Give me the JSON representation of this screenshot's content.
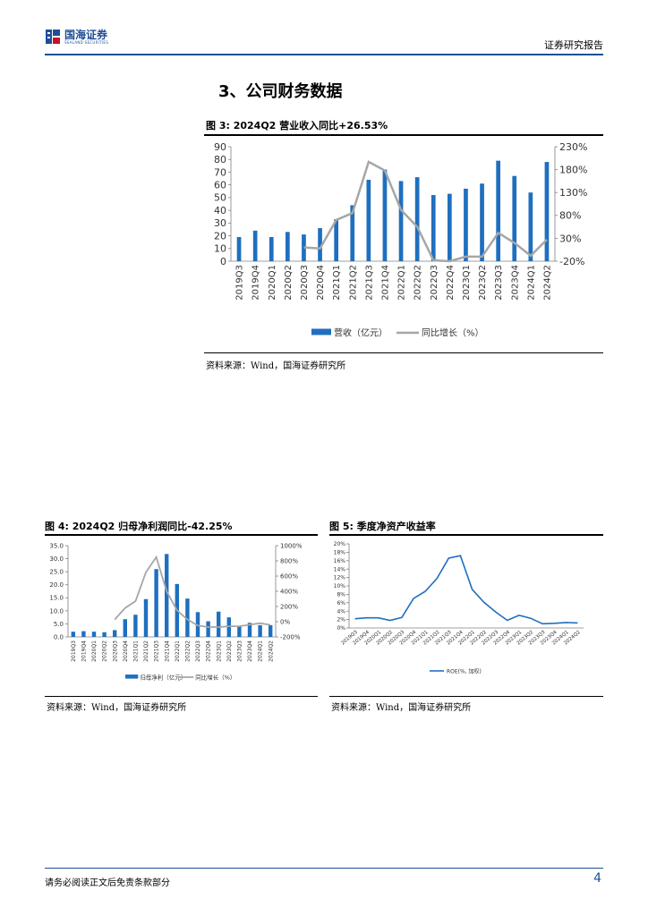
{
  "header": {
    "logo_name": "国海证券",
    "logo_sub": "SEALAND SECURITIES",
    "report_type": "证券研究报告"
  },
  "section_title": "3、公司财务数据",
  "fig3": {
    "title": "图 3:  2024Q2 营业收入同比+26.53%",
    "source": "资料来源：Wind，国海证券研究所"
  },
  "fig4": {
    "title": "图 4:  2024Q2 归母净利润同比-42.25%",
    "source": "资料来源：Wind，国海证券研究所"
  },
  "fig5": {
    "title": "图 5:   季度净资产收益率",
    "source": "资料来源：Wind，国海证券研究所"
  },
  "footer": {
    "disclaimer": "请务必阅读正文后免责条款部分",
    "page": "4"
  },
  "chart_data": [
    {
      "id": "fig3",
      "type": "bar+line",
      "categories": [
        "2019Q3",
        "2019Q4",
        "2020Q1",
        "2020Q2",
        "2020Q3",
        "2020Q4",
        "2021Q1",
        "2021Q2",
        "2021Q3",
        "2021Q4",
        "2022Q1",
        "2022Q2",
        "2022Q3",
        "2022Q4",
        "2023Q1",
        "2023Q2",
        "2023Q3",
        "2023Q4",
        "2024Q1",
        "2024Q2"
      ],
      "series": [
        {
          "name": "营收（亿元）",
          "kind": "bar",
          "axis": "left",
          "values": [
            19,
            24,
            19,
            23,
            21,
            26,
            33,
            44,
            64,
            72,
            63,
            66,
            52,
            53,
            57,
            61,
            79,
            67,
            54,
            78
          ]
        },
        {
          "name": "同比增长（%）",
          "kind": "line",
          "axis": "right",
          "values": [
            null,
            null,
            null,
            null,
            10,
            8,
            70,
            85,
            197,
            178,
            92,
            55,
            -18,
            -20,
            -10,
            -10,
            42,
            20,
            -8,
            27
          ]
        }
      ],
      "yticks_left": [
        "0",
        "10",
        "20",
        "30",
        "40",
        "50",
        "60",
        "70",
        "80",
        "90"
      ],
      "yticks_right": [
        "-20%",
        "30%",
        "80%",
        "130%",
        "180%",
        "230%"
      ],
      "ylim_left": [
        0,
        90
      ],
      "ylim_right": [
        -20,
        230
      ],
      "colors": {
        "bar": "#1f6fbf",
        "line": "#a6a6a6"
      },
      "legend": "bottom"
    },
    {
      "id": "fig4",
      "type": "bar+line",
      "categories": [
        "2019Q3",
        "2019Q4",
        "2020Q1",
        "2020Q2",
        "2020Q3",
        "2020Q4",
        "2021Q1",
        "2021Q2",
        "2021Q3",
        "2021Q4",
        "2022Q1",
        "2022Q2",
        "2022Q3",
        "2022Q4",
        "2023Q1",
        "2023Q2",
        "2023Q3",
        "2023Q4",
        "2024Q1",
        "2024Q2"
      ],
      "series": [
        {
          "name": "归母净利（亿元）",
          "kind": "bar",
          "axis": "left",
          "values": [
            2.0,
            2.2,
            2.0,
            1.8,
            2.6,
            6.8,
            8.5,
            14.5,
            26.0,
            31.8,
            20.3,
            14.7,
            9.5,
            6.0,
            9.7,
            7.5,
            4.3,
            5.4,
            4.5,
            4.5
          ]
        },
        {
          "name": "同比增长（%）",
          "kind": "line",
          "axis": "right",
          "values": [
            null,
            null,
            null,
            null,
            30,
            180,
            270,
            650,
            850,
            400,
            150,
            30,
            -50,
            -70,
            -70,
            -60,
            -60,
            -40,
            -20,
            -42
          ]
        }
      ],
      "yticks_left": [
        "0.0",
        "5.0",
        "10.0",
        "15.0",
        "20.0",
        "25.0",
        "30.0",
        "35.0"
      ],
      "yticks_right": [
        "-200%",
        "0%",
        "200%",
        "400%",
        "600%",
        "800%",
        "1000%"
      ],
      "ylim_left": [
        0,
        35
      ],
      "ylim_right": [
        -200,
        1000
      ],
      "colors": {
        "bar": "#1f6fbf",
        "line": "#a6a6a6"
      },
      "legend": "bottom"
    },
    {
      "id": "fig5",
      "type": "line",
      "categories": [
        "2019Q3",
        "2019Q4",
        "2020Q1",
        "2020Q2",
        "2020Q3",
        "2020Q4",
        "2021Q1",
        "2021Q2",
        "2021Q3",
        "2021Q4",
        "2022Q1",
        "2022Q2",
        "2022Q3",
        "2022Q4",
        "2023Q1",
        "2023Q2",
        "2023Q3",
        "2023Q4",
        "2024Q1",
        "2024Q2"
      ],
      "series": [
        {
          "name": "ROE(%, 加权)",
          "values": [
            2.2,
            2.4,
            2.4,
            1.8,
            2.5,
            7.0,
            8.7,
            11.8,
            16.6,
            17.2,
            9.2,
            6.1,
            3.8,
            1.8,
            3.0,
            2.3,
            1.0,
            1.1,
            1.3,
            1.2
          ]
        }
      ],
      "yticks": [
        "0%",
        "2%",
        "4%",
        "6%",
        "8%",
        "10%",
        "12%",
        "14%",
        "16%",
        "18%",
        "20%"
      ],
      "ylim": [
        0,
        20
      ],
      "colors": {
        "line": "#1f6fbf"
      },
      "legend": "bottom"
    }
  ]
}
